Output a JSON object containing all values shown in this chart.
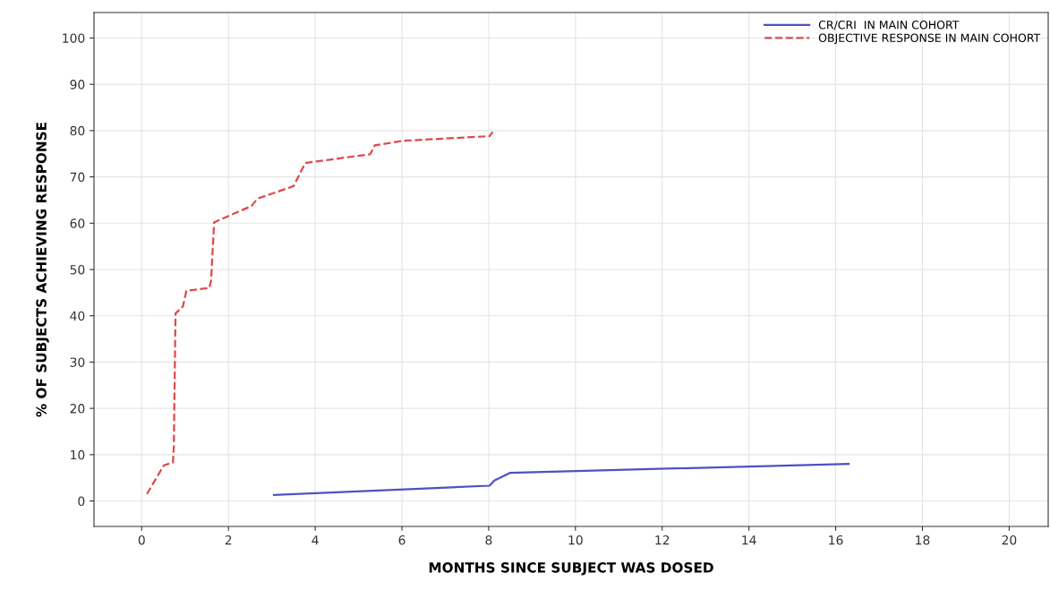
{
  "chart_data": {
    "type": "line",
    "xlabel": "MONTHS SINCE SUBJECT WAS DOSED",
    "ylabel": "% OF SUBJECTS ACHIEVING RESPONSE",
    "xlim": [
      -1.1,
      20.9
    ],
    "xticks": [
      0,
      2,
      4,
      6,
      8,
      10,
      12,
      14,
      16,
      18,
      20
    ],
    "ylim": [
      -5.5,
      105.5
    ],
    "yticks": [
      0,
      10,
      20,
      30,
      40,
      50,
      60,
      70,
      80,
      90,
      100
    ],
    "grid": true,
    "legend": "top right",
    "series": [
      {
        "name": "CR/CRI  IN MAIN COHORT",
        "color": "#5050c0",
        "line_style": "solid",
        "x": [
          3.05,
          8.02,
          8.13,
          8.5,
          16.3
        ],
        "values": [
          1.3,
          3.3,
          4.4,
          6.1,
          8.0
        ]
      },
      {
        "name": "OBJECTIVE RESPONSE IN MAIN COHORT",
        "color": "#e04848",
        "line_style": "dashed",
        "x": [
          0.12,
          0.51,
          0.72,
          0.74,
          0.78,
          0.95,
          1.03,
          1.56,
          1.6,
          1.67,
          2.53,
          2.67,
          3.5,
          3.77,
          5.27,
          5.37,
          6.03,
          8.02,
          8.09
        ],
        "values": [
          1.5,
          7.7,
          8.3,
          11.6,
          40.5,
          42,
          45.4,
          46,
          47.7,
          60.2,
          63.7,
          65.3,
          68,
          73,
          74.9,
          76.8,
          77.8,
          78.8,
          79.7
        ]
      }
    ]
  }
}
